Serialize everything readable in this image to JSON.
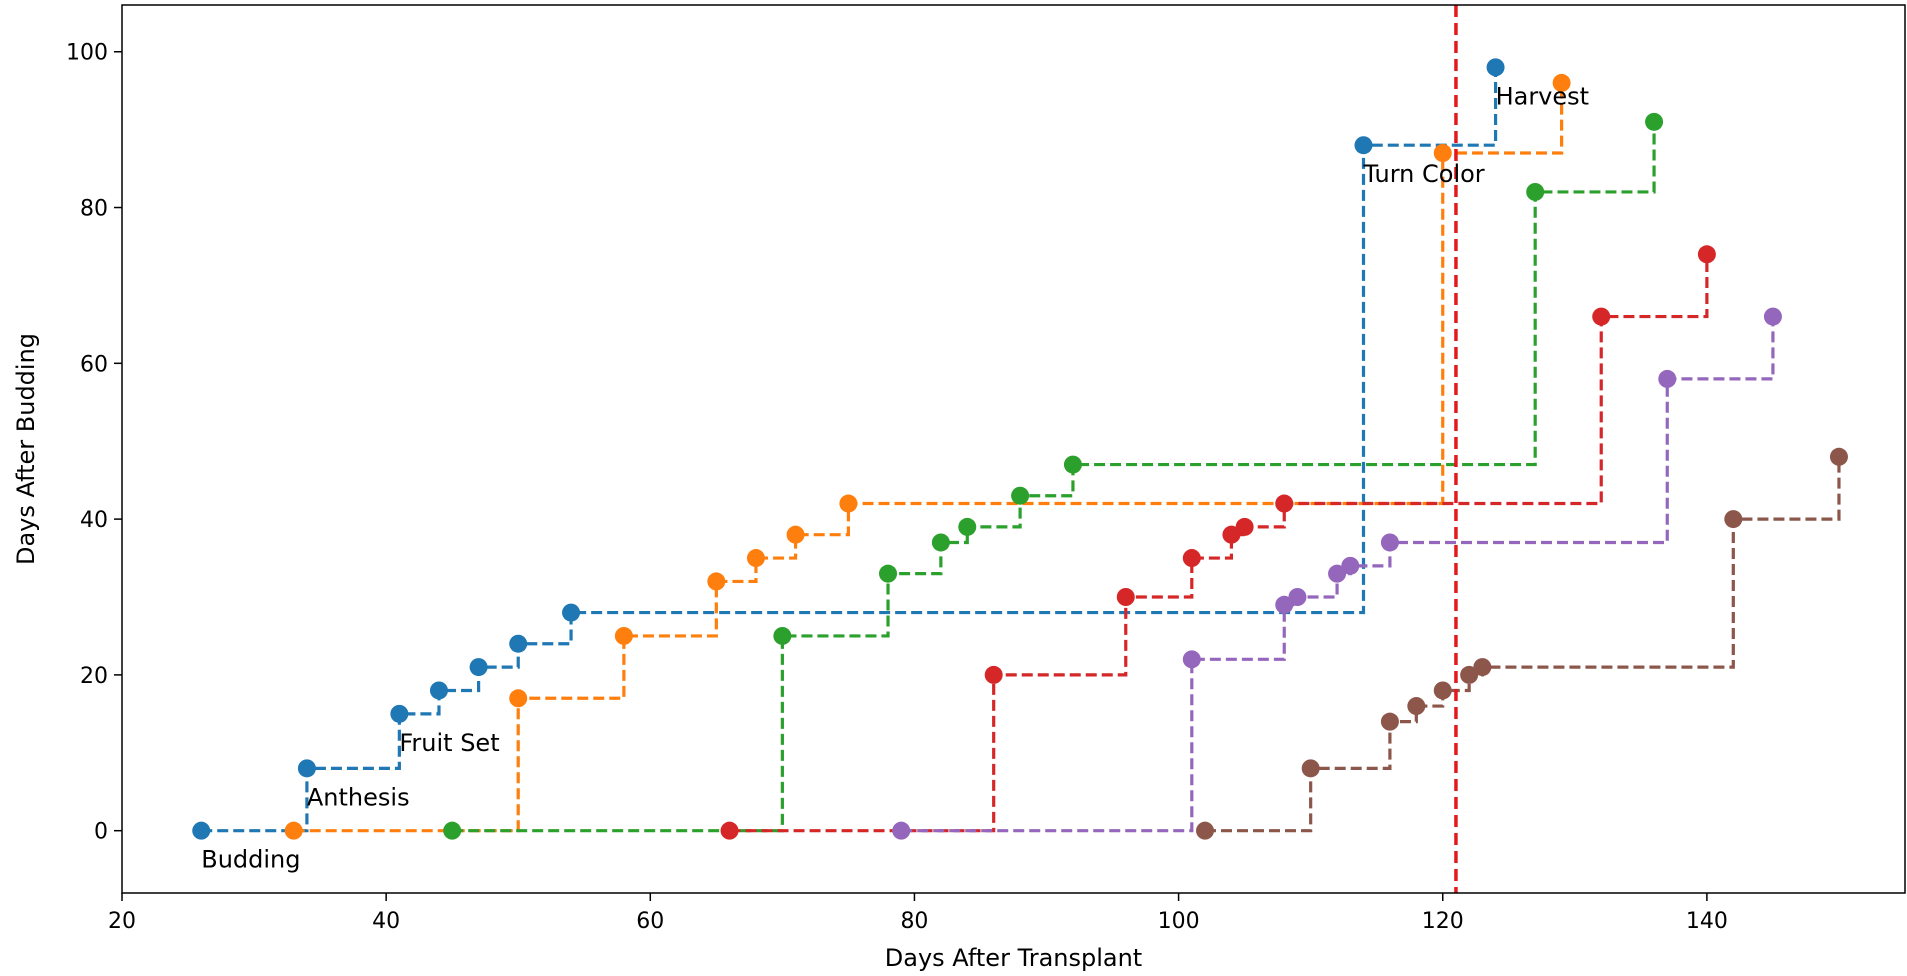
{
  "chart_data": {
    "type": "line",
    "step": "post",
    "line_style": "dashed",
    "marker": "circle",
    "xlabel": "Days After Transplant",
    "ylabel": "Days After Budding",
    "xlim": [
      20,
      155
    ],
    "ylim": [
      -8,
      106
    ],
    "x_ticks": [
      20,
      40,
      60,
      80,
      100,
      120,
      140
    ],
    "y_ticks": [
      0,
      20,
      40,
      60,
      80,
      100
    ],
    "grid": false,
    "vline": {
      "x": 121,
      "color": "#e31a1c"
    },
    "series": [
      {
        "color": "#1f77b4",
        "x": [
          26,
          34,
          41,
          44,
          47,
          50,
          54,
          114,
          124
        ],
        "y": [
          0,
          8,
          15,
          18,
          21,
          24,
          28,
          88,
          98
        ]
      },
      {
        "color": "#ff7f0e",
        "x": [
          33,
          50,
          58,
          65,
          68,
          71,
          75,
          120,
          129
        ],
        "y": [
          0,
          17,
          25,
          32,
          35,
          38,
          42,
          87,
          96
        ]
      },
      {
        "color": "#2ca02c",
        "x": [
          45,
          70,
          78,
          82,
          84,
          88,
          92,
          127,
          136
        ],
        "y": [
          0,
          25,
          33,
          37,
          39,
          43,
          47,
          82,
          91
        ]
      },
      {
        "color": "#d62728",
        "x": [
          66,
          86,
          96,
          101,
          104,
          105,
          108,
          132,
          140
        ],
        "y": [
          0,
          20,
          30,
          35,
          38,
          39,
          42,
          66,
          74
        ]
      },
      {
        "color": "#9467bd",
        "x": [
          79,
          101,
          108,
          109,
          112,
          113,
          116,
          137,
          145
        ],
        "y": [
          0,
          22,
          29,
          30,
          33,
          34,
          37,
          58,
          66
        ]
      },
      {
        "color": "#8c564b",
        "x": [
          102,
          110,
          116,
          118,
          120,
          122,
          123,
          142,
          150
        ],
        "y": [
          0,
          8,
          14,
          16,
          18,
          20,
          21,
          40,
          48
        ]
      }
    ],
    "annotations": [
      {
        "text": "Budding",
        "x": 26,
        "y": 0
      },
      {
        "text": "Anthesis",
        "x": 34,
        "y": 8
      },
      {
        "text": "Fruit Set",
        "x": 41,
        "y": 15
      },
      {
        "text": "Turn Color",
        "x": 114,
        "y": 88
      },
      {
        "text": "Harvest",
        "x": 124,
        "y": 98
      }
    ]
  }
}
